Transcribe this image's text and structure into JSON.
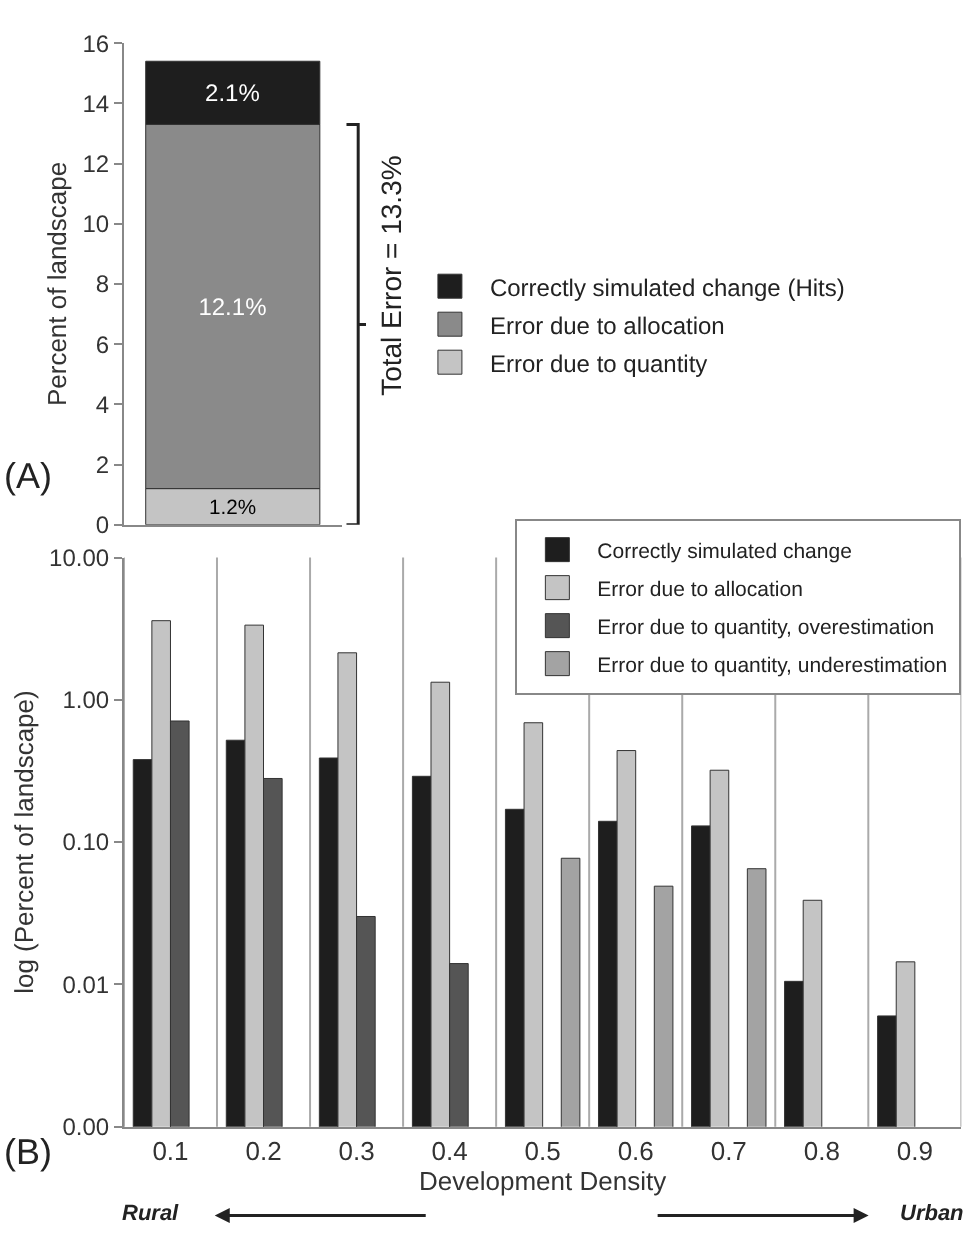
{
  "chart_data": [
    {
      "type": "bar",
      "stacked": true,
      "categories": [
        null
      ],
      "ylabel": "Percent of landscape",
      "ylim": [
        0,
        16
      ],
      "yticks": [
        0,
        2,
        4,
        6,
        8,
        10,
        12,
        14,
        16
      ],
      "grid": false,
      "legend": "right",
      "series": [
        {
          "name": "Error due to quantity",
          "color": "#c4c4c4",
          "values": [
            1.2
          ]
        },
        {
          "name": "Error due to allocation",
          "color": "#8a8a8a",
          "values": [
            12.1
          ]
        },
        {
          "name": "Correctly simulated change (Hits)",
          "color": "#1e1e1e",
          "values": [
            2.1
          ]
        }
      ],
      "value_labels": [
        [
          "1.2%"
        ],
        [
          "12.1%"
        ],
        [
          "2.1%"
        ]
      ],
      "annotations": [
        "(A)",
        "Total Error = 13.3%"
      ]
    },
    {
      "type": "bar",
      "categories": [
        "0.1",
        "0.2",
        "0.3",
        "0.4",
        "0.5",
        "0.6",
        "0.7",
        "0.8",
        "0.9"
      ],
      "xlabel": "Development Density",
      "ylabel": "log (Percent of landscape)",
      "log": "y",
      "ylim": [
        0.001,
        10
      ],
      "yticks": [
        {
          "value": 0.001,
          "label": "0.00"
        },
        {
          "value": 0.01,
          "label": "0.01"
        },
        {
          "value": 0.1,
          "label": "0.10"
        },
        {
          "value": 1,
          "label": "1.00"
        },
        {
          "value": 10,
          "label": "10.00"
        }
      ],
      "grid": "x",
      "legend": "top right",
      "series": [
        {
          "name": "Correctly simulated change",
          "color": "#1e1e1e",
          "values": [
            0.38,
            0.52,
            0.39,
            0.29,
            0.17,
            0.14,
            0.13,
            0.0105,
            0.006
          ]
        },
        {
          "name": "Error due to allocation",
          "color": "#c4c4c4",
          "values": [
            3.6,
            3.35,
            2.14,
            1.33,
            0.69,
            0.44,
            0.32,
            0.039,
            0.0144
          ]
        },
        {
          "name": "Error due to quantity, overestimation",
          "color": "#555555",
          "values": [
            0.71,
            0.28,
            0.03,
            0.014,
            null,
            null,
            null,
            null,
            null
          ]
        },
        {
          "name": "Error due to quantity, underestimation",
          "color": "#a3a3a3",
          "values": [
            null,
            null,
            null,
            null,
            0.077,
            0.049,
            0.065,
            null,
            null
          ]
        }
      ],
      "annotations": [
        "(B)",
        "Rural",
        "Urban"
      ]
    }
  ]
}
